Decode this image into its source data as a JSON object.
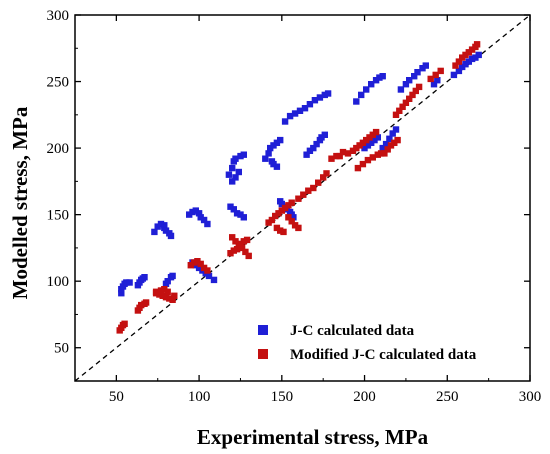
{
  "chart_data": {
    "type": "scatter",
    "title": "",
    "xlabel": "Experimental stress, MPa",
    "ylabel": "Modelled stress, MPa",
    "xlim": [
      25,
      300
    ],
    "ylim": [
      25,
      300
    ],
    "xticks": [
      "50",
      "100",
      "150",
      "200",
      "250",
      "300"
    ],
    "yticks": [
      "50",
      "100",
      "150",
      "200",
      "250",
      "300"
    ],
    "grid": false,
    "legend_position": "bottom-right",
    "reference_line": "y = x (dashed)",
    "series": [
      {
        "name": "J-C calculated data",
        "color": "#1f1fd6",
        "marker": "square",
        "points": [
          [
            53,
            91
          ],
          [
            53,
            94
          ],
          [
            54,
            96
          ],
          [
            55,
            98
          ],
          [
            56,
            99
          ],
          [
            58,
            99
          ],
          [
            63,
            97
          ],
          [
            64,
            99
          ],
          [
            65,
            101
          ],
          [
            66,
            102
          ],
          [
            67,
            103
          ],
          [
            73,
            137
          ],
          [
            75,
            141
          ],
          [
            77,
            143
          ],
          [
            79,
            142
          ],
          [
            79,
            140
          ],
          [
            80,
            138
          ],
          [
            82,
            136
          ],
          [
            83,
            134
          ],
          [
            80,
            98
          ],
          [
            81,
            100
          ],
          [
            83,
            103
          ],
          [
            84,
            104
          ],
          [
            94,
            150
          ],
          [
            96,
            152
          ],
          [
            98,
            153
          ],
          [
            100,
            151
          ],
          [
            101,
            148
          ],
          [
            103,
            146
          ],
          [
            105,
            143
          ],
          [
            96,
            114
          ],
          [
            98,
            112
          ],
          [
            100,
            110
          ],
          [
            102,
            108
          ],
          [
            104,
            106
          ],
          [
            106,
            104
          ],
          [
            109,
            101
          ],
          [
            119,
            156
          ],
          [
            121,
            154
          ],
          [
            123,
            151
          ],
          [
            125,
            150
          ],
          [
            127,
            148
          ],
          [
            118,
            180
          ],
          [
            120,
            185
          ],
          [
            121,
            190
          ],
          [
            122,
            192
          ],
          [
            125,
            194
          ],
          [
            127,
            195
          ],
          [
            120,
            175
          ],
          [
            122,
            178
          ],
          [
            124,
            182
          ],
          [
            140,
            192
          ],
          [
            142,
            196
          ],
          [
            143,
            200
          ],
          [
            145,
            202
          ],
          [
            147,
            204
          ],
          [
            149,
            206
          ],
          [
            144,
            190
          ],
          [
            145,
            188
          ],
          [
            147,
            186
          ],
          [
            152,
            220
          ],
          [
            155,
            224
          ],
          [
            158,
            226
          ],
          [
            161,
            228
          ],
          [
            164,
            230
          ],
          [
            167,
            233
          ],
          [
            170,
            236
          ],
          [
            173,
            238
          ],
          [
            176,
            240
          ],
          [
            178,
            241
          ],
          [
            149,
            160
          ],
          [
            150,
            158
          ],
          [
            152,
            156
          ],
          [
            153,
            154
          ],
          [
            155,
            152
          ],
          [
            156,
            150
          ],
          [
            157,
            148
          ],
          [
            165,
            195
          ],
          [
            167,
            198
          ],
          [
            169,
            200
          ],
          [
            171,
            203
          ],
          [
            173,
            206
          ],
          [
            174,
            208
          ],
          [
            176,
            210
          ],
          [
            195,
            235
          ],
          [
            198,
            240
          ],
          [
            201,
            244
          ],
          [
            204,
            248
          ],
          [
            207,
            251
          ],
          [
            209,
            253
          ],
          [
            211,
            254
          ],
          [
            200,
            200
          ],
          [
            202,
            202
          ],
          [
            204,
            204
          ],
          [
            206,
            206
          ],
          [
            208,
            208
          ],
          [
            211,
            200
          ],
          [
            213,
            203
          ],
          [
            215,
            207
          ],
          [
            217,
            211
          ],
          [
            219,
            214
          ],
          [
            222,
            244
          ],
          [
            225,
            248
          ],
          [
            227,
            251
          ],
          [
            230,
            254
          ],
          [
            232,
            257
          ],
          [
            235,
            260
          ],
          [
            237,
            262
          ],
          [
            242,
            248
          ],
          [
            244,
            251
          ],
          [
            254,
            255
          ],
          [
            257,
            258
          ],
          [
            259,
            261
          ],
          [
            261,
            263
          ],
          [
            263,
            265
          ],
          [
            265,
            267
          ],
          [
            267,
            268
          ],
          [
            269,
            270
          ]
        ]
      },
      {
        "name": "Modified J-C calculated data",
        "color": "#c41010",
        "marker": "square",
        "points": [
          [
            52,
            63
          ],
          [
            53,
            65
          ],
          [
            54,
            67
          ],
          [
            55,
            68
          ],
          [
            63,
            78
          ],
          [
            64,
            80
          ],
          [
            65,
            82
          ],
          [
            67,
            83
          ],
          [
            68,
            84
          ],
          [
            74,
            91
          ],
          [
            76,
            90
          ],
          [
            78,
            89
          ],
          [
            80,
            88
          ],
          [
            82,
            87
          ],
          [
            84,
            86
          ],
          [
            85,
            89
          ],
          [
            74,
            92
          ],
          [
            77,
            93
          ],
          [
            79,
            94
          ],
          [
            81,
            92
          ],
          [
            95,
            112
          ],
          [
            97,
            114
          ],
          [
            99,
            115
          ],
          [
            101,
            113
          ],
          [
            103,
            110
          ],
          [
            105,
            108
          ],
          [
            120,
            133
          ],
          [
            122,
            130
          ],
          [
            124,
            128
          ],
          [
            126,
            125
          ],
          [
            128,
            122
          ],
          [
            130,
            119
          ],
          [
            119,
            121
          ],
          [
            121,
            123
          ],
          [
            123,
            124
          ],
          [
            125,
            127
          ],
          [
            127,
            130
          ],
          [
            129,
            131
          ],
          [
            142,
            144
          ],
          [
            144,
            146
          ],
          [
            146,
            149
          ],
          [
            148,
            151
          ],
          [
            150,
            153
          ],
          [
            152,
            155
          ],
          [
            154,
            157
          ],
          [
            156,
            159
          ],
          [
            147,
            140
          ],
          [
            149,
            138
          ],
          [
            151,
            137
          ],
          [
            154,
            148
          ],
          [
            156,
            145
          ],
          [
            158,
            142
          ],
          [
            160,
            140
          ],
          [
            160,
            162
          ],
          [
            163,
            165
          ],
          [
            166,
            168
          ],
          [
            169,
            170
          ],
          [
            172,
            174
          ],
          [
            175,
            178
          ],
          [
            177,
            181
          ],
          [
            180,
            192
          ],
          [
            185,
            194
          ],
          [
            190,
            196
          ],
          [
            193,
            198
          ],
          [
            195,
            200
          ],
          [
            197,
            202
          ],
          [
            199,
            204
          ],
          [
            201,
            206
          ],
          [
            203,
            208
          ],
          [
            205,
            210
          ],
          [
            207,
            212
          ],
          [
            183,
            194
          ],
          [
            187,
            197
          ],
          [
            196,
            185
          ],
          [
            199,
            188
          ],
          [
            202,
            191
          ],
          [
            205,
            193
          ],
          [
            208,
            195
          ],
          [
            210,
            196
          ],
          [
            212,
            196
          ],
          [
            214,
            199
          ],
          [
            216,
            202
          ],
          [
            218,
            204
          ],
          [
            220,
            206
          ],
          [
            219,
            225
          ],
          [
            221,
            228
          ],
          [
            223,
            231
          ],
          [
            225,
            234
          ],
          [
            227,
            237
          ],
          [
            229,
            240
          ],
          [
            231,
            243
          ],
          [
            233,
            246
          ],
          [
            240,
            252
          ],
          [
            243,
            255
          ],
          [
            246,
            258
          ],
          [
            255,
            262
          ],
          [
            257,
            265
          ],
          [
            259,
            268
          ],
          [
            261,
            270
          ],
          [
            263,
            272
          ],
          [
            265,
            274
          ],
          [
            267,
            276
          ],
          [
            268,
            278
          ]
        ]
      }
    ]
  }
}
